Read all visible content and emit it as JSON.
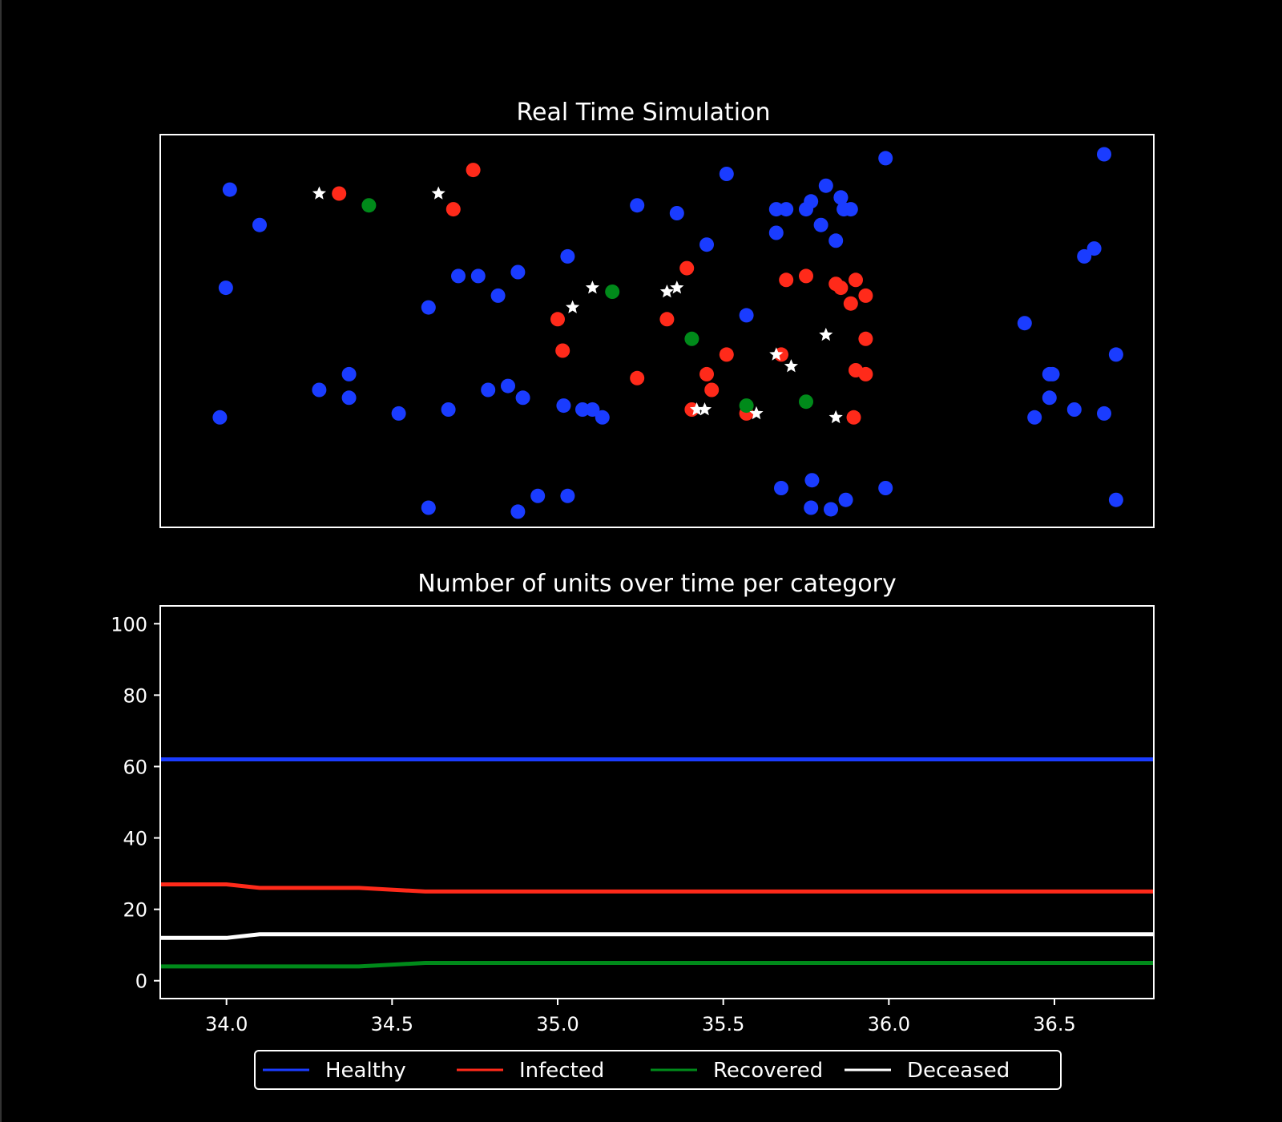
{
  "colors": {
    "background": "#000000",
    "axes": "#ffffff",
    "healthy": "#1a3cff",
    "infected": "#ff2a1a",
    "recovered": "#008a1a",
    "deceased": "#ffffff"
  },
  "chart_data": [
    {
      "type": "scatter",
      "title": "Real Time Simulation",
      "xticks": "none",
      "yticks": "none",
      "xlim": [
        0,
        100
      ],
      "ylim": [
        0,
        100
      ],
      "grid": false,
      "series": [
        {
          "category": "healthy",
          "marker": "circle",
          "color": "#1a3cff",
          "points": [
            [
              7,
              86
            ],
            [
              10,
              77
            ],
            [
              6.6,
              61
            ],
            [
              6,
              28
            ],
            [
              16,
              35
            ],
            [
              19,
              39
            ],
            [
              19,
              33
            ],
            [
              24,
              29
            ],
            [
              27,
              56
            ],
            [
              30,
              64
            ],
            [
              29,
              30
            ],
            [
              32,
              64
            ],
            [
              33,
              35
            ],
            [
              34,
              59
            ],
            [
              35,
              36
            ],
            [
              36,
              65
            ],
            [
              36.5,
              33
            ],
            [
              41,
              69
            ],
            [
              40.6,
              31
            ],
            [
              41,
              8
            ],
            [
              42.5,
              30
            ],
            [
              43.5,
              30
            ],
            [
              44.5,
              28
            ],
            [
              48,
              82
            ],
            [
              52,
              80
            ],
            [
              55,
              72
            ],
            [
              57,
              90
            ],
            [
              59,
              54
            ],
            [
              62,
              81
            ],
            [
              62,
              75
            ],
            [
              63,
              81
            ],
            [
              65,
              81
            ],
            [
              65.5,
              83
            ],
            [
              66.5,
              77
            ],
            [
              67,
              87
            ],
            [
              68,
              73
            ],
            [
              68.5,
              84
            ],
            [
              68.5,
              84
            ],
            [
              68.8,
              81
            ],
            [
              69.5,
              81
            ],
            [
              73,
              94
            ],
            [
              27,
              5
            ],
            [
              36,
              4
            ],
            [
              38,
              8
            ],
            [
              62.5,
              10
            ],
            [
              65.6,
              12
            ],
            [
              65.5,
              5
            ],
            [
              67.5,
              4.6
            ],
            [
              69,
              7
            ],
            [
              73,
              10
            ],
            [
              87,
              52
            ],
            [
              88,
              28
            ],
            [
              89.5,
              33
            ],
            [
              89.8,
              39
            ],
            [
              89.5,
              39
            ],
            [
              92,
              30
            ],
            [
              93,
              69
            ],
            [
              94,
              71
            ],
            [
              95,
              29
            ],
            [
              95,
              95
            ],
            [
              96.2,
              44
            ],
            [
              96.2,
              7
            ]
          ]
        },
        {
          "category": "infected",
          "marker": "circle",
          "color": "#ff2a1a",
          "points": [
            [
              18,
              85
            ],
            [
              29.5,
              81
            ],
            [
              31.5,
              91
            ],
            [
              40,
              53
            ],
            [
              40.5,
              45
            ],
            [
              48,
              38
            ],
            [
              51,
              53
            ],
            [
              53,
              66
            ],
            [
              55,
              39
            ],
            [
              55.5,
              35
            ],
            [
              57,
              44
            ],
            [
              59,
              29
            ],
            [
              62.5,
              44
            ],
            [
              63,
              63
            ],
            [
              65,
              64
            ],
            [
              68,
              62
            ],
            [
              68.5,
              61
            ],
            [
              69.5,
              57
            ],
            [
              70,
              63
            ],
            [
              71,
              59
            ],
            [
              71,
              48
            ],
            [
              70,
              40
            ],
            [
              71,
              39
            ],
            [
              69.8,
              28
            ],
            [
              53.5,
              30
            ]
          ]
        },
        {
          "category": "recovered",
          "marker": "circle",
          "color": "#008a1a",
          "points": [
            [
              21,
              82
            ],
            [
              45.5,
              60
            ],
            [
              53.5,
              48
            ],
            [
              59,
              31
            ],
            [
              65,
              32
            ]
          ]
        },
        {
          "category": "deceased",
          "marker": "star",
          "color": "#ffffff",
          "points": [
            [
              16,
              85
            ],
            [
              28,
              85
            ],
            [
              41.5,
              56
            ],
            [
              43.5,
              61
            ],
            [
              51,
              60
            ],
            [
              52,
              61
            ],
            [
              54,
              30
            ],
            [
              54.8,
              30
            ],
            [
              60,
              29
            ],
            [
              62,
              44
            ],
            [
              63.5,
              41
            ],
            [
              67,
              49
            ],
            [
              68,
              28
            ]
          ]
        }
      ]
    },
    {
      "type": "line",
      "title": "Number of units over time per category",
      "xlim": [
        33.8,
        36.8
      ],
      "ylim": [
        -5,
        105
      ],
      "xticks": [
        "34.0",
        "34.5",
        "35.0",
        "35.5",
        "36.0",
        "36.5"
      ],
      "xtick_values": [
        34.0,
        34.5,
        35.0,
        35.5,
        36.0,
        36.5
      ],
      "yticks": [
        "0",
        "20",
        "40",
        "60",
        "80",
        "100"
      ],
      "ytick_values": [
        0,
        20,
        40,
        60,
        80,
        100
      ],
      "grid": false,
      "legend": "bottom-center-outside",
      "series": [
        {
          "name": "Healthy",
          "color": "#1a3cff",
          "x": [
            33.8,
            36.8
          ],
          "y": [
            62,
            62
          ]
        },
        {
          "name": "Infected",
          "color": "#ff2a1a",
          "x": [
            33.8,
            34.0,
            34.1,
            34.4,
            34.6,
            36.8
          ],
          "y": [
            27,
            27,
            26,
            26,
            25,
            25
          ]
        },
        {
          "name": "Recovered",
          "color": "#008a1a",
          "x": [
            33.8,
            34.4,
            34.6,
            36.8
          ],
          "y": [
            4,
            4,
            5,
            5
          ]
        },
        {
          "name": "Deceased",
          "color": "#ffffff",
          "x": [
            33.8,
            34.0,
            34.1,
            36.8
          ],
          "y": [
            12,
            12,
            13,
            13
          ]
        }
      ]
    }
  ]
}
